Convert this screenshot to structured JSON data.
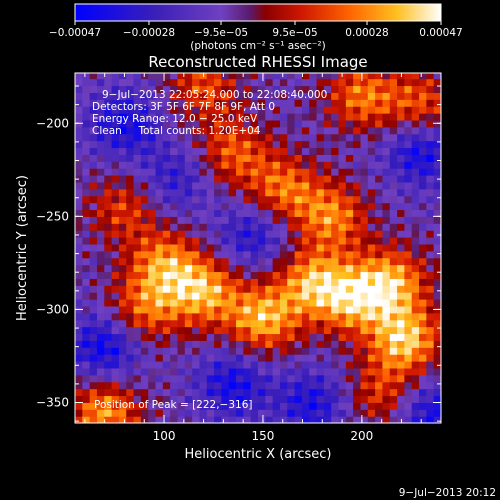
{
  "chart_data": {
    "type": "heatmap",
    "title": "Reconstructed RHESSI Image",
    "xlabel": "Heliocentric X (arcsec)",
    "ylabel": "Heliocentric Y (arcsec)",
    "xlim": [
      55,
      240
    ],
    "ylim": [
      -361,
      -173
    ],
    "x_ticks": [
      100,
      150,
      200
    ],
    "y_ticks": [
      -200,
      -250,
      -300,
      -350
    ],
    "x_tick_labels": [
      "100",
      "150",
      "200"
    ],
    "y_tick_labels": [
      "−200",
      "−250",
      "−300",
      "−350"
    ],
    "colorbar": {
      "min": -0.00047,
      "max": 0.00047,
      "ticks": [
        -0.00047,
        -0.00028,
        -9.5e-05,
        9.5e-05,
        0.00028,
        0.00047
      ],
      "tick_labels": [
        "−0.00047",
        "−0.00028",
        "−9.5e−05",
        "9.5e−05",
        "0.00028",
        "0.00047"
      ],
      "unit_label": "(photons cm⁻² s⁻¹ asec⁻²)",
      "colors": [
        "#0000ff",
        "#3b1fb8",
        "#6a3bb0",
        "#8a4bd6",
        "#b00000",
        "#e83000",
        "#ff7000",
        "#ffb000",
        "#ffe870",
        "#ffffff"
      ]
    },
    "annotations": [
      "9−Jul−2013 22:05:24.000 to 22:08:40.000",
      "Detectors: 3F 5F 6F 7F 8F 9F, Att 0",
      "Energy Range: 12.0 − 25.0 keV",
      "Clean     Total counts: 1.20E+04"
    ],
    "peak": {
      "label": "Position of Peak = [222,−316]",
      "x": 222,
      "y": -316
    },
    "bright_regions": [
      {
        "x": 100,
        "y": -275,
        "v": 0.00036
      },
      {
        "x": 120,
        "y": -290,
        "v": 0.00042
      },
      {
        "x": 90,
        "y": -300,
        "v": 0.00032
      },
      {
        "x": 150,
        "y": -305,
        "v": 0.00044
      },
      {
        "x": 175,
        "y": -285,
        "v": 0.0004
      },
      {
        "x": 195,
        "y": -295,
        "v": 0.00038
      },
      {
        "x": 222,
        "y": -316,
        "v": 0.00047
      },
      {
        "x": 215,
        "y": -285,
        "v": 0.00042
      },
      {
        "x": 160,
        "y": -235,
        "v": 0.00034
      },
      {
        "x": 185,
        "y": -250,
        "v": 0.00036
      },
      {
        "x": 135,
        "y": -215,
        "v": 0.0003
      },
      {
        "x": 200,
        "y": -185,
        "v": 0.00034
      },
      {
        "x": 230,
        "y": -190,
        "v": 0.0003
      },
      {
        "x": 120,
        "y": -180,
        "v": 0.00028
      },
      {
        "x": 80,
        "y": -245,
        "v": 0.00026
      },
      {
        "x": 70,
        "y": -355,
        "v": 0.0004
      },
      {
        "x": 210,
        "y": -345,
        "v": 0.00026
      }
    ],
    "dark_regions": [
      {
        "x": 80,
        "y": -200,
        "v": -0.0003
      },
      {
        "x": 230,
        "y": -215,
        "v": -0.00032
      },
      {
        "x": 135,
        "y": -340,
        "v": -0.0003
      },
      {
        "x": 175,
        "y": -350,
        "v": -0.00028
      },
      {
        "x": 235,
        "y": -355,
        "v": -0.0003
      },
      {
        "x": 70,
        "y": -320,
        "v": -0.00034
      },
      {
        "x": 145,
        "y": -260,
        "v": -0.00026
      },
      {
        "x": 105,
        "y": -230,
        "v": -0.00022
      }
    ]
  },
  "footer": {
    "timestamp": "9−Jul−2013 20:12"
  }
}
